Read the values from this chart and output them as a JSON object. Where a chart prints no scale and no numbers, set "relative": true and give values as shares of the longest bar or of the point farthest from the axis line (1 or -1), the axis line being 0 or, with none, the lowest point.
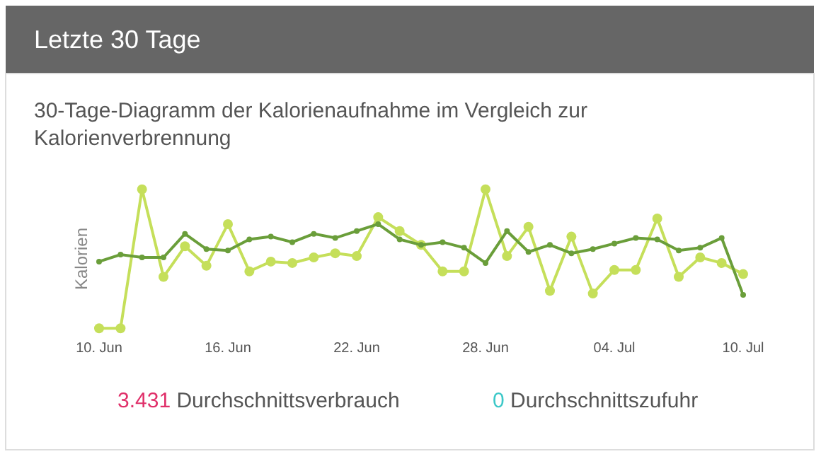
{
  "chart_data": {
    "type": "line",
    "title": "Letzte 30 Tage",
    "subtitle": "30-Tage-Diagramm der Kalorienaufnahme im Vergleich zur Kalorienverbrennung",
    "ylabel": "Kalorien",
    "relative": true,
    "marker": "circle",
    "line_style": "solid",
    "x": [
      "--06-10",
      "--06-11",
      "--06-12",
      "--06-13",
      "--06-14",
      "--06-15",
      "--06-16",
      "--06-17",
      "--06-18",
      "--06-19",
      "--06-20",
      "--06-21",
      "--06-22",
      "--06-23",
      "--06-24",
      "--06-25",
      "--06-26",
      "--06-27",
      "--06-28",
      "--06-29",
      "--06-30",
      "--07-01",
      "--07-02",
      "--07-03",
      "--07-04",
      "--07-05",
      "--07-06",
      "--07-07",
      "--07-08",
      "--07-09",
      "--07-10"
    ],
    "xlim": [
      "--06-10",
      "--07-10"
    ],
    "xticks": [
      {
        "value": "--06-10",
        "label": "10. Jun"
      },
      {
        "value": "--06-16",
        "label": "16. Jun"
      },
      {
        "value": "--06-22",
        "label": "22. Jun"
      },
      {
        "value": "--06-28",
        "label": "28. Jun"
      },
      {
        "value": "--07-04",
        "label": "04. Jul"
      },
      {
        "value": "--07-10",
        "label": "10. Jul"
      }
    ],
    "series": [
      {
        "color": "#c5df5a",
        "values": [
          0,
          0,
          1,
          0.37,
          0.59,
          0.45,
          0.75,
          0.41,
          0.48,
          0.47,
          0.51,
          0.54,
          0.52,
          0.8,
          0.7,
          0.6,
          0.41,
          0.41,
          1,
          0.52,
          0.73,
          0.27,
          0.66,
          0.25,
          0.42,
          0.42,
          0.79,
          0.37,
          0.51,
          0.47,
          0.39
        ]
      },
      {
        "color": "#6a9e3a",
        "values": [
          0.48,
          0.53,
          0.51,
          0.51,
          0.68,
          0.57,
          0.56,
          0.64,
          0.66,
          0.62,
          0.68,
          0.65,
          0.7,
          0.75,
          0.64,
          0.6,
          0.62,
          0.58,
          0.47,
          0.7,
          0.55,
          0.6,
          0.54,
          0.57,
          0.61,
          0.65,
          0.64,
          0.56,
          0.58,
          0.65,
          0.24
        ]
      }
    ],
    "annotations": [
      "3.431 Durchschnittsverbrauch",
      "0 Durchschnittszufuhr"
    ]
  }
}
